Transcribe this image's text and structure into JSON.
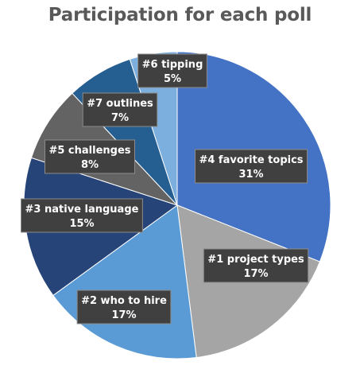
{
  "chart_data": {
    "type": "pie",
    "title": "Participation for each poll",
    "slices": [
      {
        "label": "#4 favorite topics",
        "value": 31,
        "display": "31%",
        "color": "#4472C4"
      },
      {
        "label": "#1 project types",
        "value": 17,
        "display": "17%",
        "color": "#A5A5A5"
      },
      {
        "label": "#2 who to hire",
        "value": 17,
        "display": "17%",
        "color": "#5B9BD5"
      },
      {
        "label": "#3 native language",
        "value": 15,
        "display": "15%",
        "color": "#264478"
      },
      {
        "label": "#5 challenges",
        "value": 8,
        "display": "8%",
        "color": "#636363"
      },
      {
        "label": "#7 outlines",
        "value": 7,
        "display": "7%",
        "color": "#255E91"
      },
      {
        "label": "#6 tipping",
        "value": 5,
        "display": "5%",
        "color": "#7CAFDD"
      }
    ],
    "start_angle_deg": 0,
    "direction": "clockwise",
    "legend": "none"
  }
}
